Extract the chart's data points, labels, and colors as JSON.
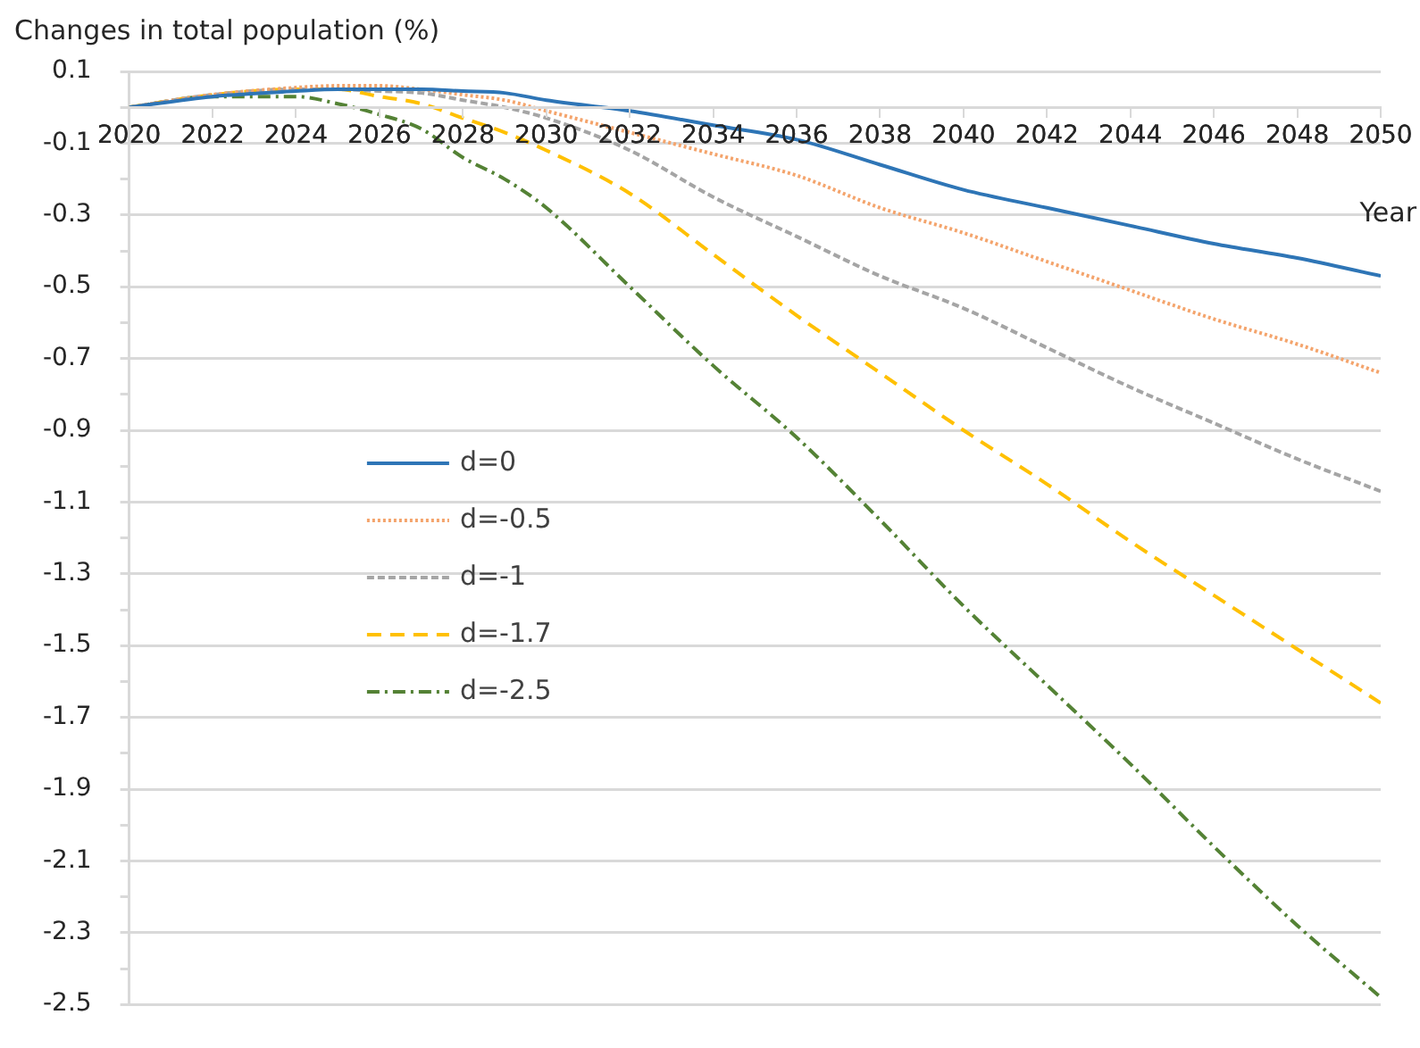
{
  "chart_data": {
    "type": "line",
    "ylabel": "Changes in total population (%)",
    "xlabel": "Year",
    "x": [
      2020,
      2022,
      2024,
      2025,
      2026,
      2027,
      2028,
      2029,
      2030,
      2032,
      2034,
      2036,
      2038,
      2040,
      2042,
      2044,
      2046,
      2048,
      2050
    ],
    "xlim": [
      2020,
      2050
    ],
    "xticks": [
      2020,
      2022,
      2024,
      2026,
      2028,
      2030,
      2032,
      2034,
      2036,
      2038,
      2040,
      2042,
      2044,
      2046,
      2048,
      2050
    ],
    "ylim": [
      -2.5,
      0.1
    ],
    "yticks": [
      0.1,
      {
        "value": 0,
        "label": null
      },
      -0.1,
      {
        "value": -0.2,
        "label": null
      },
      -0.3,
      {
        "value": -0.4,
        "label": null
      },
      -0.5,
      {
        "value": -0.6,
        "label": null
      },
      -0.7,
      {
        "value": -0.8,
        "label": null
      },
      -0.9,
      {
        "value": -1.0,
        "label": null
      },
      -1.1,
      {
        "value": -1.2,
        "label": null
      },
      -1.3,
      {
        "value": -1.4,
        "label": null
      },
      -1.5,
      {
        "value": -1.6,
        "label": null
      },
      -1.7,
      {
        "value": -1.8,
        "label": null
      },
      -1.9,
      {
        "value": -2.0,
        "label": null
      },
      -2.1,
      {
        "value": -2.2,
        "label": null
      },
      -2.3,
      {
        "value": -2.4,
        "label": null
      },
      -2.5
    ],
    "grid": "y",
    "legend": "left",
    "marker": "none",
    "series": [
      {
        "name": "d=0",
        "color": "#2e75b6",
        "line_style": "solid",
        "values": [
          0,
          0.03,
          0.045,
          0.05,
          0.05,
          0.05,
          0.045,
          0.04,
          0.02,
          -0.01,
          -0.05,
          -0.09,
          -0.16,
          -0.23,
          -0.28,
          -0.33,
          -0.38,
          -0.42,
          -0.47
        ]
      },
      {
        "name": "d=-0.5",
        "color": "#f4a46c",
        "line_style": "dotted",
        "values": [
          0,
          0.035,
          0.055,
          0.06,
          0.06,
          0.05,
          0.035,
          0.02,
          -0.01,
          -0.07,
          -0.13,
          -0.19,
          -0.28,
          -0.35,
          -0.43,
          -0.51,
          -0.59,
          -0.66,
          -0.74
        ]
      },
      {
        "name": "d=-1",
        "color": "#a5a5a5",
        "line_style": "dashed",
        "values": [
          0,
          0.035,
          0.05,
          0.05,
          0.045,
          0.04,
          0.02,
          0,
          -0.03,
          -0.12,
          -0.25,
          -0.36,
          -0.47,
          -0.56,
          -0.67,
          -0.78,
          -0.88,
          -0.98,
          -1.07
        ]
      },
      {
        "name": "d=-1.7",
        "color": "#ffc000",
        "line_style": "dashed",
        "values": [
          0,
          0.035,
          0.05,
          0.05,
          0.03,
          0.01,
          -0.03,
          -0.07,
          -0.12,
          -0.24,
          -0.41,
          -0.58,
          -0.74,
          -0.9,
          -1.05,
          -1.21,
          -1.36,
          -1.51,
          -1.66
        ]
      },
      {
        "name": "d=-2.5",
        "color": "#548235",
        "line_style": "dashdot",
        "values": [
          0,
          0.03,
          0.03,
          0.01,
          -0.02,
          -0.06,
          -0.14,
          -0.2,
          -0.28,
          -0.5,
          -0.72,
          -0.92,
          -1.15,
          -1.39,
          -1.61,
          -1.83,
          -2.06,
          -2.28,
          -2.48
        ]
      }
    ]
  }
}
